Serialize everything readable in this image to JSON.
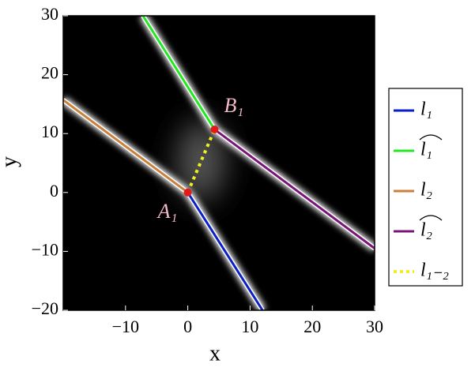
{
  "chart_data": {
    "type": "line",
    "xlabel": "x",
    "ylabel": "y",
    "xlim": [
      -20,
      30
    ],
    "ylim": [
      -20,
      30
    ],
    "xticks": [
      {
        "value": -10,
        "label": "−10"
      },
      0,
      10,
      20,
      30
    ],
    "yticks": [
      {
        "value": -20,
        "label": "−20"
      },
      {
        "value": -10,
        "label": "−10"
      },
      0,
      10,
      20,
      30
    ],
    "background": "#000000",
    "legend": "right",
    "series": [
      {
        "name": "l₁",
        "color": "#0a1fc8",
        "x": [
          0,
          12
        ],
        "values": [
          0,
          -20
        ]
      },
      {
        "name": "l₁",
        "hat": true,
        "color": "#22e822",
        "x": [
          4.3,
          -7.2
        ],
        "values": [
          10.7,
          30
        ]
      },
      {
        "name": "l₂",
        "color": "#c8803c",
        "x": [
          -20,
          0
        ],
        "values": [
          15.7,
          0
        ]
      },
      {
        "name": "l₂",
        "hat": true,
        "color": "#7a1478",
        "x": [
          4.3,
          30
        ],
        "values": [
          10.7,
          -9.5
        ]
      },
      {
        "name": "l₁₋₂",
        "dotted": true,
        "color": "#f0f020",
        "x": [
          0,
          4.3
        ],
        "values": [
          0,
          10.7
        ]
      }
    ],
    "points": [
      {
        "name": "A₁",
        "x": 0,
        "y": 0,
        "color": "#e41a1a"
      },
      {
        "name": "B₁",
        "x": 4.3,
        "y": 10.7,
        "color": "#e41a1a"
      }
    ]
  }
}
